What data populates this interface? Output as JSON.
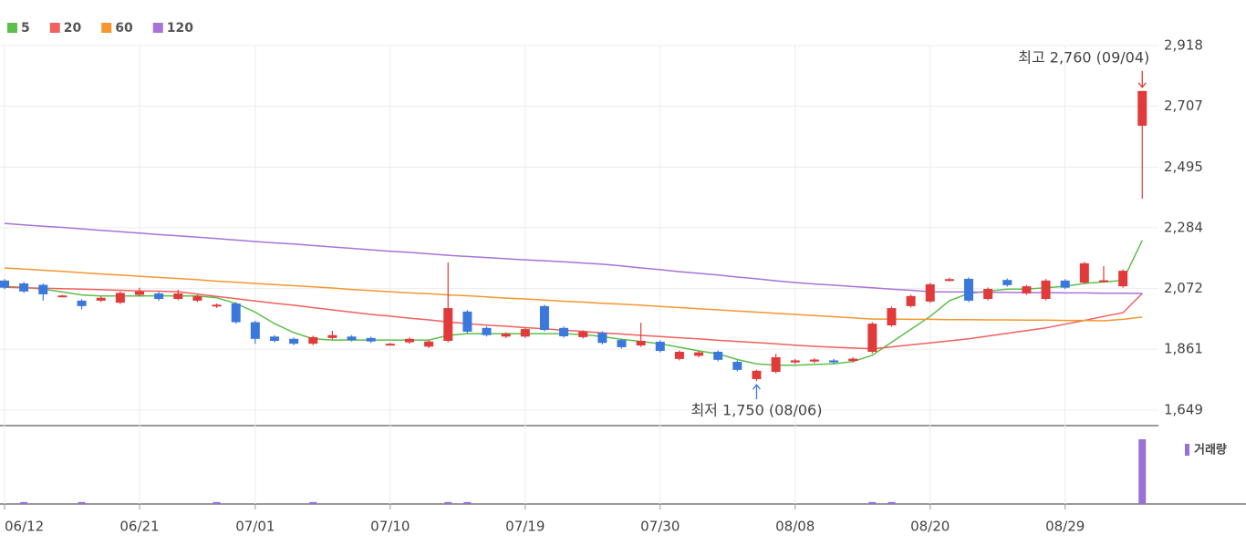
{
  "chart_data": {
    "type": "candlestick",
    "categories": [
      "06/12",
      null,
      null,
      null,
      null,
      null,
      null,
      "06/21",
      null,
      null,
      null,
      null,
      null,
      "07/01",
      null,
      null,
      null,
      null,
      null,
      null,
      "07/10",
      null,
      null,
      null,
      null,
      null,
      null,
      "07/19",
      null,
      null,
      null,
      null,
      null,
      null,
      "07/30",
      null,
      null,
      null,
      null,
      null,
      null,
      "08/08",
      null,
      null,
      null,
      null,
      null,
      null,
      "08/20",
      null,
      null,
      null,
      null,
      null,
      null,
      "08/29",
      null,
      null,
      null,
      null
    ],
    "open": [
      2100,
      2090,
      2085,
      2045,
      2030,
      2030,
      2023,
      2050,
      2055,
      2036,
      2030,
      2010,
      2020,
      1955,
      1905,
      1897,
      1880,
      1900,
      1905,
      1900,
      1878,
      1885,
      1870,
      1890,
      1992,
      1935,
      1905,
      1905,
      2011,
      1935,
      1903,
      1918,
      1893,
      1874,
      1887,
      1827,
      1838,
      1852,
      1817,
      1757,
      1782,
      1815,
      1818,
      1822,
      1820,
      1852,
      1944,
      2011,
      2027,
      2102,
      2106,
      2036,
      2102,
      2055,
      2036,
      2100,
      2093,
      2098,
      2080,
      2639
    ],
    "high": [
      2105,
      2095,
      2090,
      2050,
      2035,
      2045,
      2062,
      2075,
      2060,
      2068,
      2050,
      2020,
      2025,
      1960,
      1910,
      1902,
      1908,
      1925,
      1910,
      1905,
      1883,
      1902,
      1893,
      2163,
      1997,
      1940,
      1920,
      1936,
      2016,
      1940,
      1927,
      1923,
      1898,
      1953,
      1892,
      1857,
      1855,
      1857,
      1822,
      1790,
      1845,
      1827,
      1830,
      1827,
      1833,
      1955,
      2010,
      2051,
      2092,
      2110,
      2111,
      2076,
      2107,
      2085,
      2105,
      2105,
      2165,
      2150,
      2139,
      2760
    ],
    "low": [
      2070,
      2057,
      2030,
      2043,
      2000,
      2025,
      2018,
      2045,
      2030,
      2031,
      2025,
      2005,
      1950,
      1880,
      1885,
      1875,
      1875,
      1895,
      1888,
      1883,
      1875,
      1880,
      1865,
      1885,
      1917,
      1905,
      1900,
      1900,
      1923,
      1901,
      1898,
      1878,
      1863,
      1869,
      1850,
      1822,
      1833,
      1819,
      1784,
      1750,
      1777,
      1810,
      1813,
      1810,
      1815,
      1847,
      1939,
      2006,
      2022,
      2097,
      2025,
      2031,
      2079,
      2050,
      2031,
      2070,
      2088,
      2093,
      2075,
      2385
    ],
    "close": [
      2075,
      2062,
      2052,
      2048,
      2011,
      2040,
      2057,
      2062,
      2036,
      2055,
      2045,
      2016,
      1955,
      1897,
      1890,
      1880,
      1903,
      1910,
      1893,
      1888,
      1880,
      1897,
      1888,
      2004,
      1922,
      1910,
      1915,
      1931,
      1928,
      1906,
      1922,
      1883,
      1868,
      1890,
      1855,
      1852,
      1850,
      1824,
      1789,
      1786,
      1833,
      1822,
      1825,
      1815,
      1828,
      1950,
      2004,
      2046,
      2087,
      2105,
      2030,
      2071,
      2084,
      2080,
      2100,
      2075,
      2160,
      2101,
      2134,
      2760
    ],
    "up_color": "#e03a3a",
    "down_color": "#3a78dc",
    "series": [
      {
        "name": "5",
        "color": "#5cbf4a",
        "values": [
          2080,
          2076,
          2070,
          2060,
          2050,
          2046,
          2046,
          2046,
          2047,
          2046,
          2046,
          2040,
          2020,
          1990,
          1950,
          1919,
          1897,
          1893,
          1893,
          1893,
          1893,
          1893,
          1893,
          1909,
          1915,
          1915,
          1915,
          1915,
          1915,
          1915,
          1912,
          1905,
          1895,
          1888,
          1880,
          1868,
          1855,
          1845,
          1825,
          1810,
          1805,
          1805,
          1808,
          1810,
          1818,
          1840,
          1885,
          1930,
          1975,
          2030,
          2055,
          2063,
          2070,
          2070,
          2075,
          2080,
          2090,
          2095,
          2100,
          2240
        ]
      },
      {
        "name": "20",
        "color": "#f0605e",
        "values": [
          2077,
          2075,
          2073,
          2072,
          2070,
          2068,
          2066,
          2064,
          2063,
          2061,
          2053,
          2045,
          2037,
          2029,
          2021,
          2014,
          2006,
          1998,
          1990,
          1982,
          1976,
          1969,
          1963,
          1956,
          1950,
          1945,
          1941,
          1936,
          1932,
          1927,
          1923,
          1918,
          1914,
          1909,
          1905,
          1901,
          1897,
          1892,
          1888,
          1884,
          1880,
          1875,
          1871,
          1868,
          1865,
          1862,
          1869,
          1876,
          1883,
          1890,
          1897,
          1907,
          1916,
          1926,
          1935,
          1948,
          1961,
          1975,
          1988,
          2055
        ]
      },
      {
        "name": "60",
        "color": "#f5962e",
        "values": [
          2144,
          2140,
          2136,
          2132,
          2127,
          2123,
          2119,
          2115,
          2111,
          2107,
          2103,
          2098,
          2094,
          2090,
          2086,
          2082,
          2078,
          2074,
          2069,
          2065,
          2061,
          2057,
          2054,
          2050,
          2047,
          2043,
          2039,
          2036,
          2032,
          2028,
          2025,
          2021,
          2018,
          2014,
          2010,
          2006,
          2002,
          1998,
          1994,
          1990,
          1986,
          1982,
          1978,
          1974,
          1970,
          1966,
          1966,
          1965,
          1965,
          1964,
          1964,
          1963,
          1963,
          1962,
          1962,
          1961,
          1961,
          1960,
          1965,
          1973
        ]
      },
      {
        "name": "120",
        "color": "#a673d8",
        "values": [
          2299,
          2294,
          2289,
          2285,
          2280,
          2275,
          2270,
          2265,
          2260,
          2256,
          2251,
          2246,
          2241,
          2236,
          2231,
          2227,
          2222,
          2217,
          2212,
          2207,
          2202,
          2198,
          2193,
          2188,
          2184,
          2180,
          2176,
          2172,
          2169,
          2165,
          2161,
          2157,
          2151,
          2144,
          2138,
          2131,
          2125,
          2119,
          2112,
          2106,
          2099,
          2093,
          2088,
          2084,
          2079,
          2075,
          2070,
          2066,
          2061,
          2060,
          2060,
          2059,
          2059,
          2058,
          2058,
          2057,
          2057,
          2056,
          2056,
          2055
        ]
      }
    ],
    "volume": {
      "name": "거래량",
      "color": "#9a6fd6",
      "values": [
        0,
        3,
        0,
        0,
        3,
        0,
        0,
        0,
        0,
        0,
        0,
        3,
        0,
        0,
        0,
        0,
        3,
        0,
        0,
        0,
        0,
        0,
        0,
        3,
        3,
        0,
        0,
        0,
        0,
        0,
        0,
        0,
        0,
        0,
        0,
        0,
        0,
        0,
        0,
        0,
        0,
        0,
        0,
        0,
        0,
        3,
        3,
        0,
        0,
        0,
        0,
        0,
        0,
        0,
        0,
        0,
        0,
        0,
        0,
        100
      ]
    },
    "ylim": [
      1595,
      2918
    ],
    "yticks": [
      {
        "value": 1649,
        "label": "1,649"
      },
      {
        "value": 1861,
        "label": "1,861"
      },
      {
        "value": 2072,
        "label": "2,072"
      },
      {
        "value": 2284,
        "label": "2,284"
      },
      {
        "value": 2495,
        "label": "2,495"
      },
      {
        "value": 2707,
        "label": "2,707"
      },
      {
        "value": 2918,
        "label": "2,918"
      }
    ],
    "grid": true,
    "annotations": {
      "high": "최고 2,760 (09/04)",
      "low": "최저 1,750 (08/06)"
    }
  }
}
